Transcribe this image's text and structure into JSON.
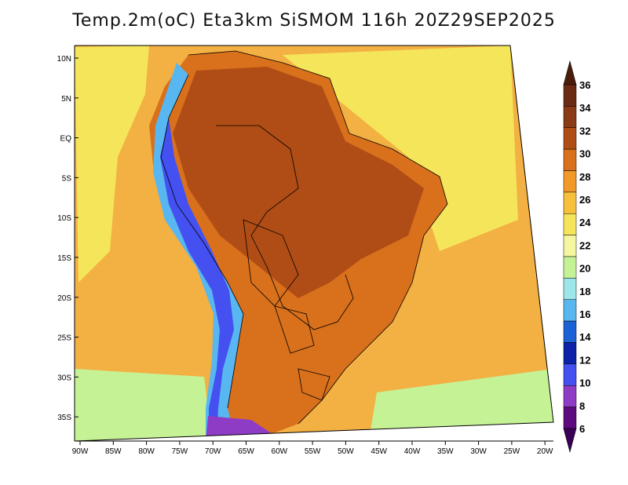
{
  "title": "Temp.2m(oC) Eta3km SiSMOM 116h 20Z29SEP2025",
  "lat_labels": [
    "10N",
    "5N",
    "EQ",
    "5S",
    "10S",
    "15S",
    "20S",
    "25S",
    "30S",
    "35S"
  ],
  "lon_labels": [
    "90W",
    "85W",
    "80W",
    "75W",
    "70W",
    "65W",
    "60W",
    "55W",
    "50W",
    "45W",
    "40W",
    "35W",
    "30W",
    "25W",
    "20W"
  ],
  "colorbar": {
    "labels": [
      "36",
      "34",
      "32",
      "30",
      "28",
      "26",
      "24",
      "22",
      "20",
      "18",
      "16",
      "14",
      "12",
      "10",
      "8",
      "6"
    ],
    "colors": [
      "#6b2a12",
      "#8a3a14",
      "#b04d16",
      "#d8701c",
      "#f19a2a",
      "#f7c03c",
      "#f5e55a",
      "#f4f7a0",
      "#c6f296",
      "#9ee6ea",
      "#58b7f0",
      "#1a62d6",
      "#0c22a8",
      "#4450f0",
      "#8e3cc6",
      "#5d0a7e"
    ],
    "top_color": "#4b1c0c",
    "bottom_color": "#3a0058"
  },
  "colors": {
    "ocean": "#f3b043",
    "ocean_cool": "#f5e55a",
    "ocean_cold": "#c6f296",
    "land_hot": "#b04d16",
    "land_warm": "#d8701c",
    "andes": "#58b7f0",
    "andes_high": "#4450f0",
    "border": "#000000"
  }
}
